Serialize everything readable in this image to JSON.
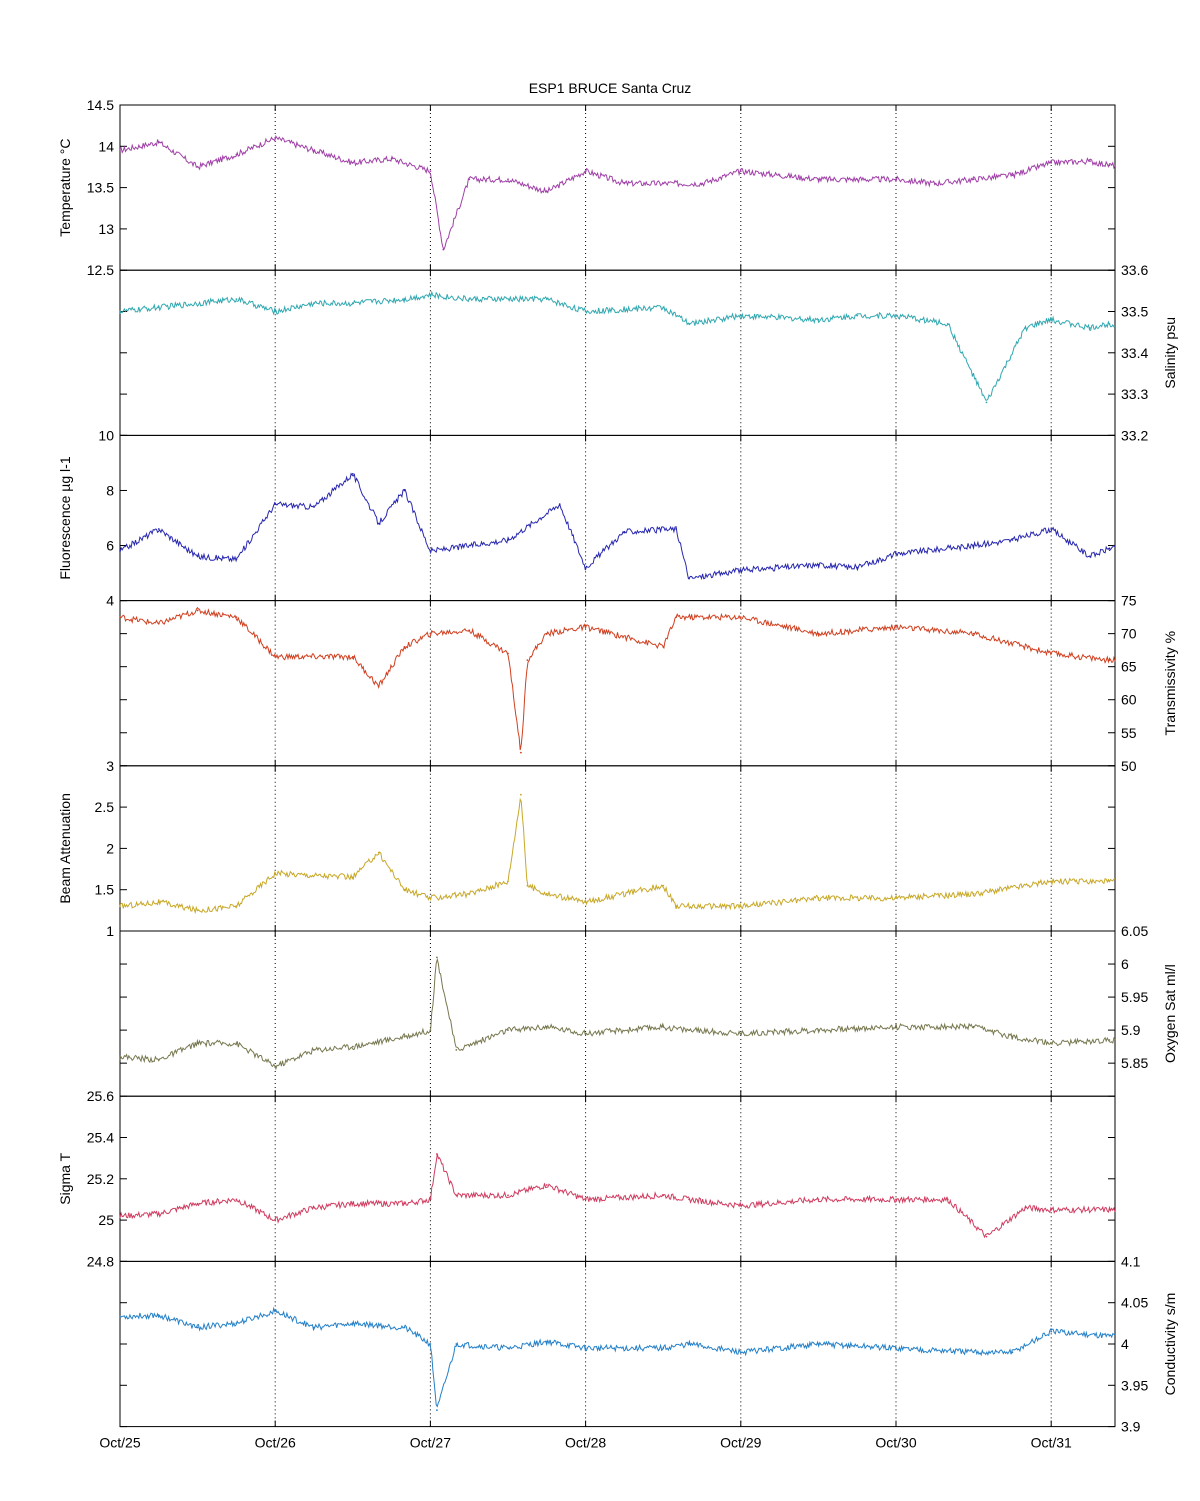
{
  "chart_data": {
    "type": "line",
    "title": "ESP1 BRUCE Santa Cruz",
    "x_ticks": [
      "Oct/25",
      "Oct/26",
      "Oct/27",
      "Oct/28",
      "Oct/29",
      "Oct/30",
      "Oct/31"
    ],
    "grid": "vertical dotted at day boundaries",
    "panels": [
      {
        "key": "temperature",
        "ylabel": "Temperature °C",
        "axis_side": "left",
        "color": "#a040a8",
        "ylim": [
          12.5,
          14.5
        ],
        "ticks": [
          "12.5",
          "13",
          "13.5",
          "14",
          "14.5"
        ],
        "x": [
          "Oct/25",
          "Oct/25 06h",
          "Oct/25 12h",
          "Oct/25 18h",
          "Oct/26",
          "Oct/26 06h",
          "Oct/26 12h",
          "Oct/26 18h",
          "Oct/27",
          "Oct/27 02h",
          "Oct/27 06h",
          "Oct/27 12h",
          "Oct/27 18h",
          "Oct/28",
          "Oct/28 06h",
          "Oct/28 12h",
          "Oct/28 18h",
          "Oct/29",
          "Oct/29 06h",
          "Oct/29 12h",
          "Oct/29 18h",
          "Oct/30",
          "Oct/30 06h",
          "Oct/30 12h",
          "Oct/30 18h",
          "Oct/31",
          "Oct/31 06h",
          "Oct/31 09h"
        ],
        "y": [
          13.95,
          14.05,
          13.75,
          13.9,
          14.1,
          13.95,
          13.8,
          13.85,
          13.7,
          12.75,
          13.6,
          13.6,
          13.45,
          13.7,
          13.55,
          13.55,
          13.55,
          13.7,
          13.65,
          13.6,
          13.6,
          13.6,
          13.55,
          13.6,
          13.65,
          13.8,
          13.82,
          13.77
        ]
      },
      {
        "key": "salinity",
        "ylabel": "Salinity psu",
        "axis_side": "right",
        "color": "#30a8b0",
        "ylim": [
          33.2,
          33.6
        ],
        "ticks": [
          "33.2",
          "33.3",
          "33.4",
          "33.5",
          "33.6"
        ],
        "x": [
          "Oct/25",
          "Oct/25 06h",
          "Oct/25 18h",
          "Oct/26",
          "Oct/26 06h",
          "Oct/26 12h",
          "Oct/26 20h",
          "Oct/27",
          "Oct/27 06h",
          "Oct/27 18h",
          "Oct/28",
          "Oct/28 12h",
          "Oct/28 16h",
          "Oct/29",
          "Oct/29 12h",
          "Oct/29 18h",
          "Oct/30",
          "Oct/30 08h",
          "Oct/30 14h",
          "Oct/30 20h",
          "Oct/31",
          "Oct/31 06h",
          "Oct/31 09h"
        ],
        "y": [
          33.5,
          33.51,
          33.53,
          33.5,
          33.52,
          33.52,
          33.53,
          33.54,
          33.53,
          33.53,
          33.5,
          33.51,
          33.47,
          33.49,
          33.48,
          33.49,
          33.49,
          33.47,
          33.28,
          33.46,
          33.48,
          33.46,
          33.47
        ]
      },
      {
        "key": "fluorescence",
        "ylabel": "Fluorescence µg l-1",
        "axis_side": "left",
        "color": "#2828b0",
        "ylim": [
          4,
          10
        ],
        "ticks": [
          "4",
          "6",
          "8",
          "10"
        ],
        "x": [
          "Oct/25",
          "Oct/25 06h",
          "Oct/25 12h",
          "Oct/25 18h",
          "Oct/26",
          "Oct/26 06h",
          "Oct/26 12h",
          "Oct/26 16h",
          "Oct/26 20h",
          "Oct/27",
          "Oct/27 12h",
          "Oct/27 20h",
          "Oct/28",
          "Oct/28 06h",
          "Oct/28 14h",
          "Oct/28 16h",
          "Oct/29",
          "Oct/29 12h",
          "Oct/29 18h",
          "Oct/30",
          "Oct/30 12h",
          "Oct/30 18h",
          "Oct/31",
          "Oct/31 06h",
          "Oct/31 09h"
        ],
        "y": [
          5.8,
          6.6,
          5.6,
          5.5,
          7.5,
          7.4,
          8.6,
          6.8,
          8.0,
          5.8,
          6.2,
          7.5,
          5.2,
          6.5,
          6.6,
          4.8,
          5.1,
          5.3,
          5.2,
          5.7,
          6.0,
          6.2,
          6.6,
          5.6,
          5.9
        ]
      },
      {
        "key": "transmissivity",
        "ylabel": "Transmissivity %",
        "axis_side": "right",
        "color": "#d04020",
        "ylim": [
          50,
          75
        ],
        "ticks": [
          "50",
          "55",
          "60",
          "65",
          "70",
          "75"
        ],
        "x": [
          "Oct/25",
          "Oct/25 06h",
          "Oct/25 12h",
          "Oct/25 18h",
          "Oct/26",
          "Oct/26 12h",
          "Oct/26 16h",
          "Oct/26 20h",
          "Oct/27",
          "Oct/27 06h",
          "Oct/27 12h",
          "Oct/27 14h",
          "Oct/27 15h",
          "Oct/27 18h",
          "Oct/28",
          "Oct/28 12h",
          "Oct/28 14h",
          "Oct/29",
          "Oct/29 12h",
          "Oct/30",
          "Oct/30 12h",
          "Oct/31",
          "Oct/31 09h"
        ],
        "y": [
          72.5,
          71.5,
          73.5,
          72.5,
          66.5,
          66.5,
          62,
          68,
          70,
          70.5,
          67,
          52,
          66,
          70,
          71,
          68,
          72.5,
          72.5,
          70,
          71,
          70,
          67,
          66
        ]
      },
      {
        "key": "beam_attenuation",
        "ylabel": "Beam Attenuation",
        "axis_side": "left",
        "color": "#c8a828",
        "ylim": [
          1,
          3
        ],
        "ticks": [
          "1",
          "1.5",
          "2",
          "2.5",
          "3"
        ],
        "x": [
          "Oct/25",
          "Oct/25 06h",
          "Oct/25 12h",
          "Oct/25 18h",
          "Oct/26",
          "Oct/26 12h",
          "Oct/26 16h",
          "Oct/26 20h",
          "Oct/27",
          "Oct/27 06h",
          "Oct/27 12h",
          "Oct/27 14h",
          "Oct/27 15h",
          "Oct/27 18h",
          "Oct/28",
          "Oct/28 12h",
          "Oct/28 14h",
          "Oct/29",
          "Oct/29 12h",
          "Oct/30",
          "Oct/30 12h",
          "Oct/31",
          "Oct/31 09h"
        ],
        "y": [
          1.3,
          1.35,
          1.25,
          1.3,
          1.7,
          1.65,
          1.95,
          1.5,
          1.4,
          1.45,
          1.6,
          2.65,
          1.55,
          1.45,
          1.35,
          1.55,
          1.3,
          1.3,
          1.4,
          1.4,
          1.45,
          1.6,
          1.6
        ]
      },
      {
        "key": "oxygen",
        "ylabel": "Oxygen Sat ml/l",
        "axis_side": "right",
        "color": "#787850",
        "ylim": [
          5.8,
          6.05
        ],
        "ticks": [
          "5.85",
          "5.9",
          "5.95",
          "6",
          "6.05"
        ],
        "x": [
          "Oct/25",
          "Oct/25 06h",
          "Oct/25 12h",
          "Oct/25 18h",
          "Oct/26",
          "Oct/26 06h",
          "Oct/26 12h",
          "Oct/26 20h",
          "Oct/27",
          "Oct/27 01h",
          "Oct/27 04h",
          "Oct/27 12h",
          "Oct/27 18h",
          "Oct/28",
          "Oct/28 12h",
          "Oct/28 16h",
          "Oct/29",
          "Oct/29 12h",
          "Oct/30",
          "Oct/30 12h",
          "Oct/30 18h",
          "Oct/31",
          "Oct/31 09h"
        ],
        "y": [
          5.86,
          5.855,
          5.88,
          5.88,
          5.845,
          5.87,
          5.875,
          5.89,
          5.9,
          6.01,
          5.87,
          5.9,
          5.905,
          5.895,
          5.905,
          5.9,
          5.895,
          5.9,
          5.905,
          5.905,
          5.89,
          5.88,
          5.885
        ]
      },
      {
        "key": "sigma_t",
        "ylabel": "Sigma T",
        "axis_side": "left",
        "color": "#d03c60",
        "ylim": [
          24.8,
          25.6
        ],
        "ticks": [
          "24.8",
          "25",
          "25.2",
          "25.4",
          "25.6"
        ],
        "x": [
          "Oct/25",
          "Oct/25 06h",
          "Oct/25 12h",
          "Oct/25 18h",
          "Oct/26",
          "Oct/26 06h",
          "Oct/26 12h",
          "Oct/26 20h",
          "Oct/27",
          "Oct/27 01h",
          "Oct/27 04h",
          "Oct/27 12h",
          "Oct/27 18h",
          "Oct/28",
          "Oct/28 12h",
          "Oct/28 16h",
          "Oct/29",
          "Oct/29 12h",
          "Oct/30",
          "Oct/30 08h",
          "Oct/30 14h",
          "Oct/30 20h",
          "Oct/31",
          "Oct/31 09h"
        ],
        "y": [
          25.02,
          25.03,
          25.08,
          25.1,
          25,
          25.06,
          25.08,
          25.08,
          25.1,
          25.32,
          25.12,
          25.12,
          25.17,
          25.1,
          25.12,
          25.1,
          25.07,
          25.1,
          25.1,
          25.1,
          24.92,
          25.06,
          25.05,
          25.05
        ]
      },
      {
        "key": "conductivity",
        "ylabel": "Conductivity s/m",
        "axis_side": "right",
        "color": "#2480c8",
        "ylim": [
          3.9,
          4.1
        ],
        "ticks": [
          "3.9",
          "3.95",
          "4",
          "4.05",
          "4.1"
        ],
        "x": [
          "Oct/25",
          "Oct/25 06h",
          "Oct/25 12h",
          "Oct/25 18h",
          "Oct/26",
          "Oct/26 06h",
          "Oct/26 12h",
          "Oct/26 20h",
          "Oct/27",
          "Oct/27 01h",
          "Oct/27 04h",
          "Oct/27 12h",
          "Oct/27 18h",
          "Oct/28",
          "Oct/28 12h",
          "Oct/28 16h",
          "Oct/29",
          "Oct/29 12h",
          "Oct/30",
          "Oct/30 12h",
          "Oct/30 18h",
          "Oct/31",
          "Oct/31 09h"
        ],
        "y": [
          4.033,
          4.035,
          4.02,
          4.025,
          4.04,
          4.02,
          4.025,
          4.02,
          4,
          3.92,
          4.0,
          3.995,
          4.003,
          3.995,
          3.995,
          4.0,
          3.99,
          4.0,
          3.995,
          3.99,
          3.99,
          4.015,
          4.01
        ]
      }
    ]
  }
}
